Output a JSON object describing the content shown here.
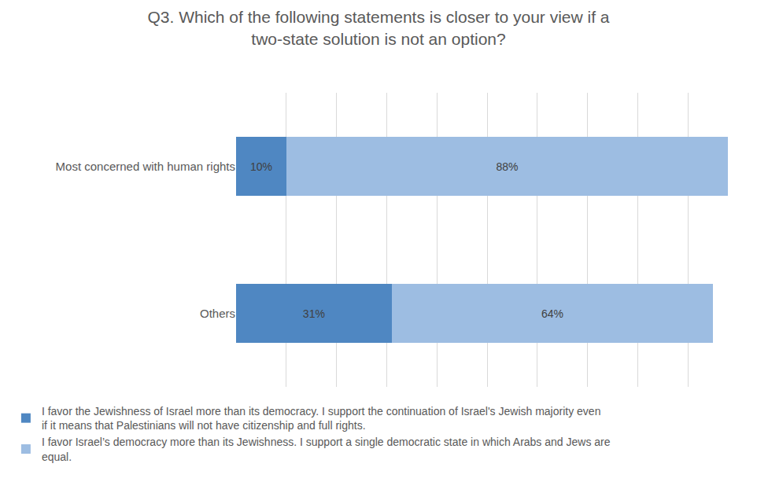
{
  "chart_data": {
    "type": "bar",
    "title": "Q3. Which of the following statements is closer to your view if a two-state solution is not an option?",
    "orientation": "horizontal",
    "stacked": true,
    "data_labels": true,
    "grid": true,
    "legend": "bottom",
    "tick_labels": "y",
    "categories": [
      "Most concerned with human rights",
      "Others"
    ],
    "xlim": [
      0,
      100
    ],
    "xticks": [
      0,
      10,
      20,
      30,
      40,
      50,
      60,
      70,
      80,
      90,
      100
    ],
    "series": [
      {
        "name": "I favor the Jewishness of Israel more than its democracy. I support the continuation of Israel's Jewish majority even if it means that Palestinians will not have citizenship and full rights.",
        "color": "#4f87c2",
        "values": [
          10,
          31
        ],
        "value_labels": [
          "10%",
          "31%"
        ]
      },
      {
        "name": "I favor Israel’s democracy more than its Jewishness. I support a single democratic state in which Arabs and Jews are equal.",
        "color": "#9dbde2",
        "values": [
          88,
          64
        ],
        "value_labels": [
          "88%",
          "64%"
        ]
      }
    ]
  }
}
